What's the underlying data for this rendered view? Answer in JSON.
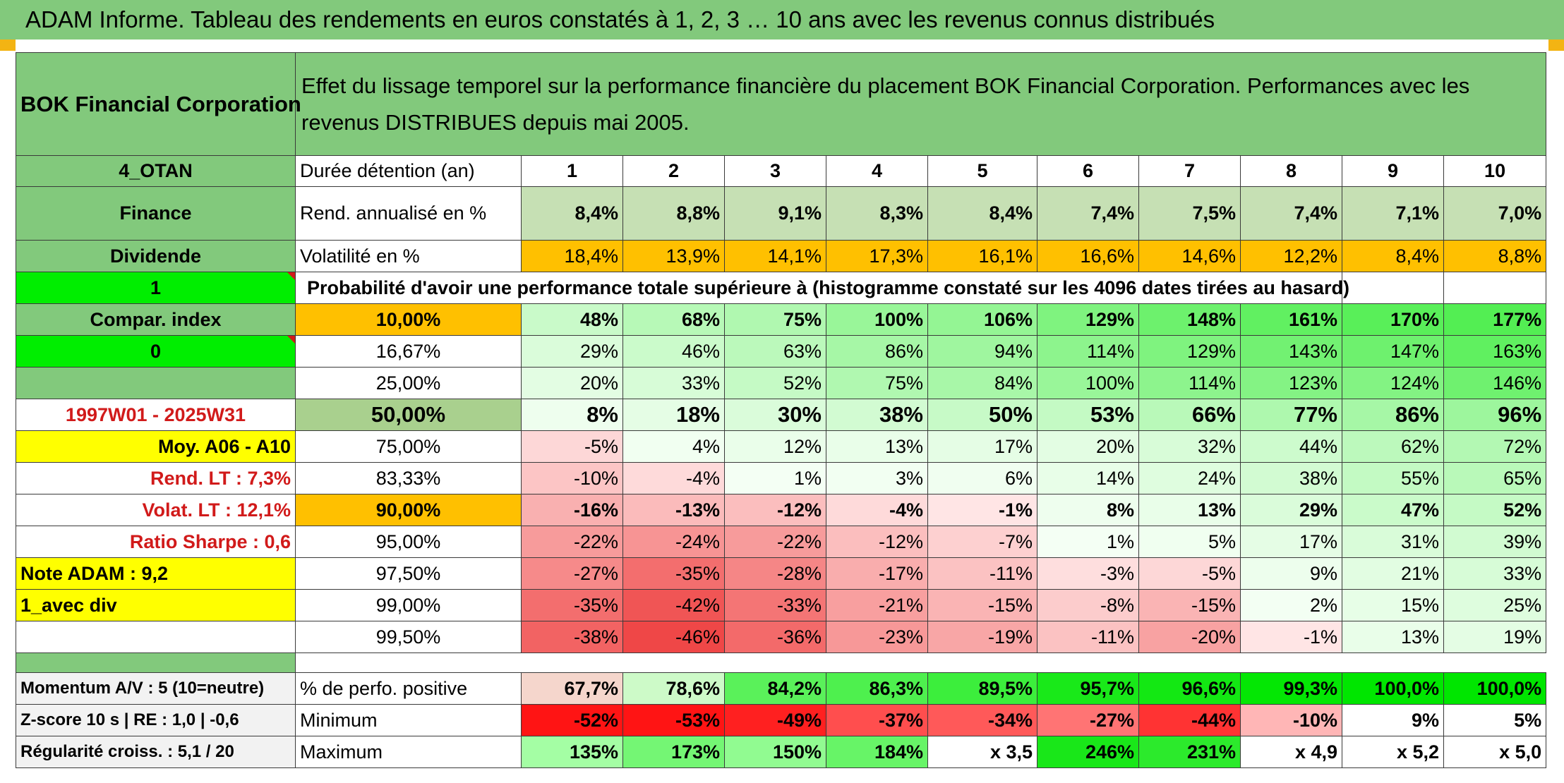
{
  "title": "ADAM Informe. Tableau des rendements en euros constatés à 1, 2, 3 … 10 ans avec les revenus connus distribués",
  "company": "BOK Financial Corporation",
  "description": "Effet du lissage temporel sur la performance financière du placement BOK Financial Corporation. Performances avec les revenus DISTRIBUES depuis mai 2005.",
  "left_labels": {
    "code": "4_OTAN",
    "sector": "Finance",
    "type": "Dividende",
    "flag1": "1",
    "compar": "Compar. index",
    "flag0": "0",
    "blank": "",
    "period": "1997W01 - 2025W31",
    "moy": "Moy. A06 - A10",
    "rend_lt": "Rend. LT :   7,3%",
    "volat_lt": "Volat. LT :   12,1%",
    "sharpe": "Ratio Sharpe :   0,6",
    "note": "Note ADAM : 9,2",
    "avec_div": "1_avec div"
  },
  "header_row": {
    "label": "Durée détention (an)",
    "years": [
      "1",
      "2",
      "3",
      "4",
      "5",
      "6",
      "7",
      "8",
      "9",
      "10"
    ]
  },
  "rend_row": {
    "label": "Rend. annualisé en %",
    "values": [
      "8,4%",
      "8,8%",
      "9,1%",
      "8,3%",
      "8,4%",
      "7,4%",
      "7,5%",
      "7,4%",
      "7,1%",
      "7,0%"
    ]
  },
  "vol_row": {
    "label": "Volatilité en %",
    "values": [
      "18,4%",
      "13,9%",
      "14,1%",
      "17,3%",
      "16,1%",
      "16,6%",
      "14,6%",
      "12,2%",
      "8,4%",
      "8,8%"
    ]
  },
  "prob_title": "Probabilité d'avoir une performance totale supérieure à (histogramme constaté sur les 4096 dates tirées au hasard)",
  "quantile_rows": [
    {
      "q": "10,00%",
      "values": [
        "48%",
        "68%",
        "75%",
        "100%",
        "106%",
        "129%",
        "148%",
        "161%",
        "170%",
        "177%"
      ],
      "bold": true
    },
    {
      "q": "16,67%",
      "values": [
        "29%",
        "46%",
        "63%",
        "86%",
        "94%",
        "114%",
        "129%",
        "143%",
        "147%",
        "163%"
      ],
      "bold": false
    },
    {
      "q": "25,00%",
      "values": [
        "20%",
        "33%",
        "52%",
        "75%",
        "84%",
        "100%",
        "114%",
        "123%",
        "124%",
        "146%"
      ],
      "bold": false
    },
    {
      "q": "50,00%",
      "values": [
        "8%",
        "18%",
        "30%",
        "38%",
        "50%",
        "53%",
        "66%",
        "77%",
        "86%",
        "96%"
      ],
      "bold": true
    },
    {
      "q": "75,00%",
      "values": [
        "-5%",
        "4%",
        "12%",
        "13%",
        "17%",
        "20%",
        "32%",
        "44%",
        "62%",
        "72%"
      ],
      "bold": false
    },
    {
      "q": "83,33%",
      "values": [
        "-10%",
        "-4%",
        "1%",
        "3%",
        "6%",
        "14%",
        "24%",
        "38%",
        "55%",
        "65%"
      ],
      "bold": false
    },
    {
      "q": "90,00%",
      "values": [
        "-16%",
        "-13%",
        "-12%",
        "-4%",
        "-1%",
        "8%",
        "13%",
        "29%",
        "47%",
        "52%"
      ],
      "bold": true
    },
    {
      "q": "95,00%",
      "values": [
        "-22%",
        "-24%",
        "-22%",
        "-12%",
        "-7%",
        "1%",
        "5%",
        "17%",
        "31%",
        "39%"
      ],
      "bold": false
    },
    {
      "q": "97,50%",
      "values": [
        "-27%",
        "-35%",
        "-28%",
        "-17%",
        "-11%",
        "-3%",
        "-5%",
        "9%",
        "21%",
        "33%"
      ],
      "bold": false
    },
    {
      "q": "99,00%",
      "values": [
        "-35%",
        "-42%",
        "-33%",
        "-21%",
        "-15%",
        "-8%",
        "-15%",
        "2%",
        "15%",
        "25%"
      ],
      "bold": false
    },
    {
      "q": "99,50%",
      "values": [
        "-38%",
        "-46%",
        "-36%",
        "-23%",
        "-19%",
        "-11%",
        "-20%",
        "-1%",
        "13%",
        "19%"
      ],
      "bold": false
    }
  ],
  "bottom_rows": [
    {
      "left": "Momentum A/V : 5 (10=neutre)",
      "label": "% de perfo. positive",
      "values": [
        "67,7%",
        "78,6%",
        "84,2%",
        "86,3%",
        "89,5%",
        "95,7%",
        "96,6%",
        "99,3%",
        "100,0%",
        "100,0%"
      ]
    },
    {
      "left": "Z-score 10 s | RE : 1,0 | -0,6",
      "label": "Minimum",
      "values": [
        "-52%",
        "-53%",
        "-49%",
        "-37%",
        "-34%",
        "-27%",
        "-44%",
        "-10%",
        "9%",
        "5%"
      ]
    },
    {
      "left": "Régularité croiss. : 5,1 / 20",
      "label": "Maximum",
      "values": [
        "135%",
        "173%",
        "150%",
        "184%",
        "x 3,5",
        "246%",
        "231%",
        "x 4,9",
        "x 5,2",
        "x 5,0"
      ]
    }
  ],
  "colors": {
    "title_green": "#82c97c",
    "header_green": "#82c97c",
    "rend_green": "#c6e0b4",
    "vol_orange": "#ffc000",
    "bright_green": "#00ee00",
    "yellow": "#ffff00",
    "label_red": "#d11a1a"
  }
}
